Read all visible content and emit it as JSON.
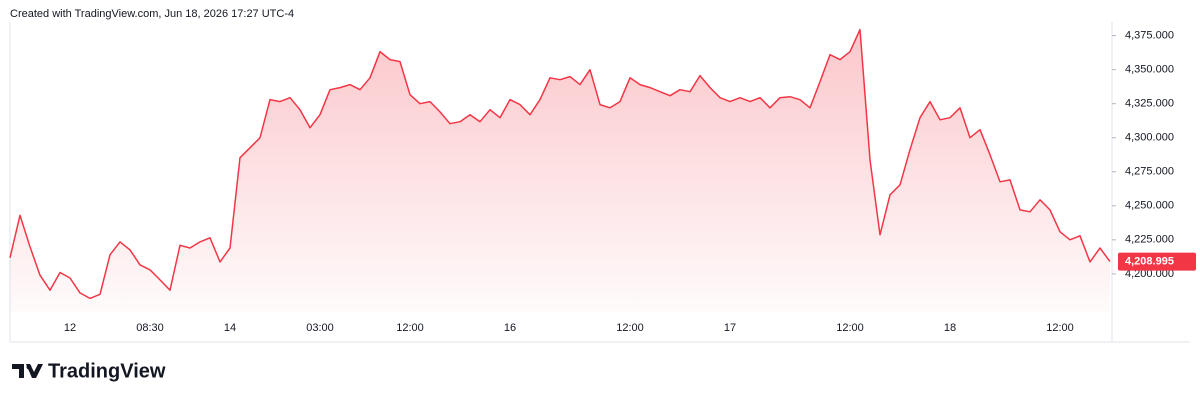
{
  "credit": "Created with TradingView.com, Jun 18, 2026 17:27 UTC-4",
  "brand": "TradingView",
  "chart_data": {
    "type": "area",
    "categories": [
      null,
      null,
      null,
      null,
      null,
      null,
      "12",
      null,
      null,
      null,
      null,
      null,
      null,
      null,
      "08:30",
      null,
      null,
      null,
      null,
      null,
      null,
      null,
      "14",
      null,
      null,
      null,
      null,
      null,
      null,
      null,
      null,
      "03:00",
      null,
      null,
      null,
      null,
      null,
      null,
      null,
      null,
      "12:00",
      null,
      null,
      null,
      null,
      null,
      null,
      null,
      null,
      null,
      "16",
      null,
      null,
      null,
      null,
      null,
      null,
      null,
      null,
      null,
      null,
      null,
      "12:00",
      null,
      null,
      null,
      null,
      null,
      null,
      null,
      null,
      null,
      "17",
      null,
      null,
      null,
      null,
      null,
      null,
      null,
      null,
      null,
      null,
      null,
      "12:00",
      null,
      null,
      null,
      null,
      null,
      null,
      null,
      null,
      null,
      "18",
      null,
      null,
      null,
      null,
      null,
      null,
      null,
      null,
      null,
      null,
      "12:00",
      null,
      null,
      null,
      null,
      null
    ],
    "series": [
      {
        "color": "#f23645",
        "values": [
          4211.8,
          4243,
          4219.9,
          4199,
          4188,
          4201,
          4197,
          4186,
          4182,
          4185,
          4214,
          4223.5,
          4217.6,
          4206.6,
          4203,
          4195.6,
          4188,
          4221,
          4219,
          4223.5,
          4226.5,
          4208.8,
          4219,
          4285.3,
          4292.6,
          4300,
          4328,
          4326.5,
          4329.4,
          4320.6,
          4307.4,
          4316.9,
          4335.3,
          4336.8,
          4339,
          4335.3,
          4344,
          4363.2,
          4357.4,
          4355.9,
          4331.6,
          4325,
          4326.5,
          4319,
          4310.3,
          4311.8,
          4316.9,
          4311.8,
          4320.6,
          4314.7,
          4328,
          4324.3,
          4316.9,
          4328,
          4344,
          4342.6,
          4344.9,
          4339,
          4350,
          4324.3,
          4322,
          4326.5,
          4344,
          4339,
          4336.8,
          4333.8,
          4330.9,
          4335.3,
          4333.8,
          4345.6,
          4336.8,
          4329.4,
          4326.5,
          4329.4,
          4326.5,
          4329.4,
          4322,
          4329.4,
          4330.1,
          4327.9,
          4322,
          4341.2,
          4361,
          4357.4,
          4363.2,
          4379.4,
          4283.8,
          4228.7,
          4258,
          4265.4,
          4291.2,
          4314.7,
          4326.5,
          4313.2,
          4314.7,
          4322,
          4300,
          4305.9,
          4287.5,
          4267.6,
          4269,
          4247,
          4245.6,
          4254.4,
          4247,
          4230.9,
          4225,
          4228,
          4208.8,
          4219,
          4208.995
        ]
      }
    ],
    "ylim": [
      4172,
      4385
    ],
    "yticks": [
      {
        "value": 4200,
        "label": "4,200.000"
      },
      {
        "value": 4225,
        "label": "4,225.000"
      },
      {
        "value": 4250,
        "label": "4,250.000"
      },
      {
        "value": 4275,
        "label": "4,275.000"
      },
      {
        "value": 4300,
        "label": "4,300.000"
      },
      {
        "value": 4325,
        "label": "4,325.000"
      },
      {
        "value": 4350,
        "label": "4,350.000"
      },
      {
        "value": 4375,
        "label": "4,375.000"
      }
    ],
    "price_label": {
      "value": 4208.995,
      "label": "4,208.995"
    },
    "grid": false
  }
}
